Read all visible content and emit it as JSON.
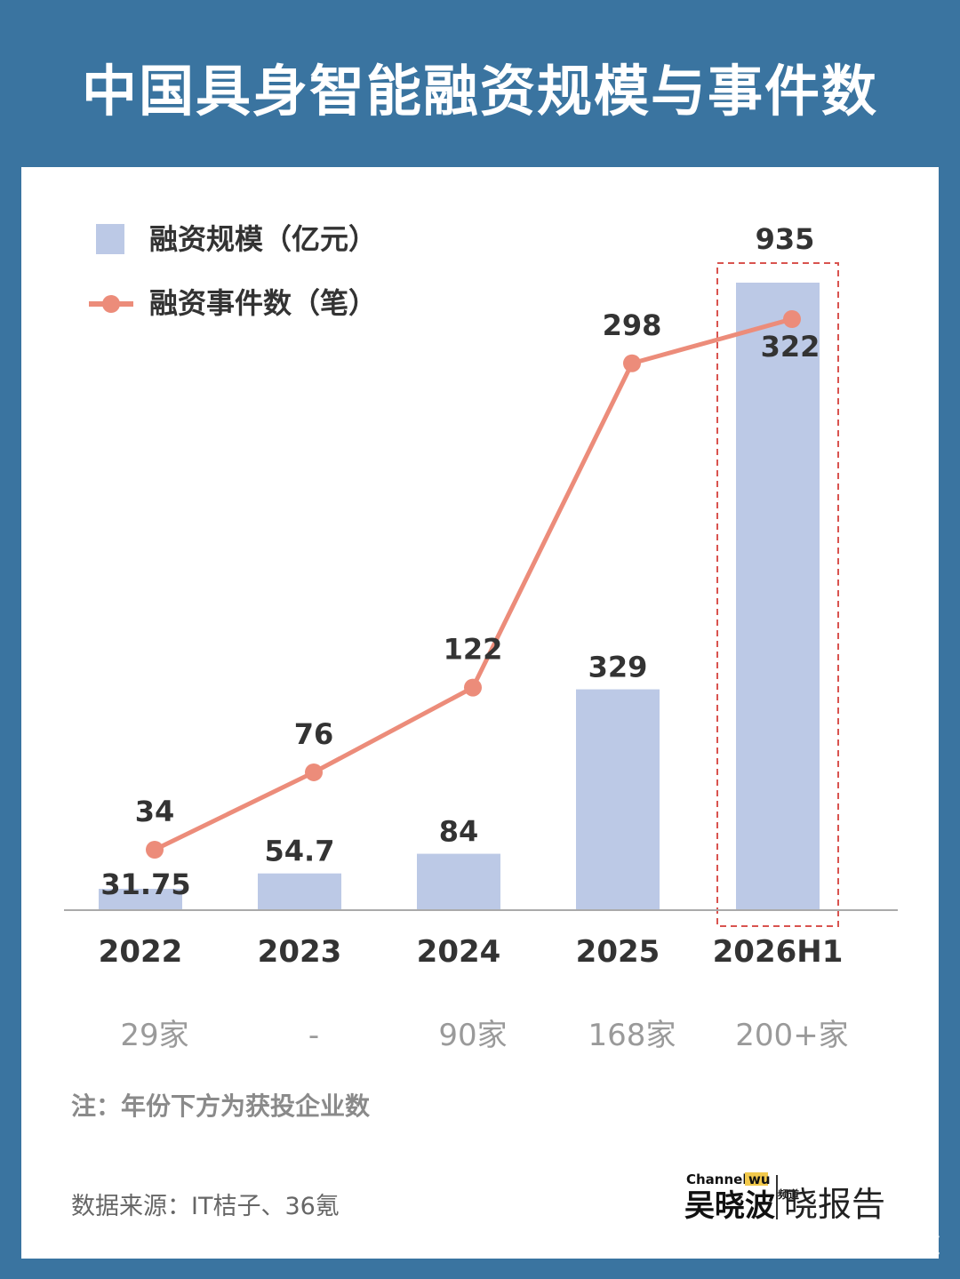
{
  "title": "中国具身智能融资规模与事件数",
  "chart_data": {
    "type": "bar+line",
    "categories": [
      "2022",
      "2023",
      "2024",
      "2025",
      "2026H1"
    ],
    "series": [
      {
        "name": "融资规模（亿元）",
        "type": "bar",
        "values": [
          31.75,
          54.7,
          84,
          329,
          935
        ],
        "labels": [
          "31.75",
          "54.7",
          "84",
          "329",
          "935"
        ],
        "color": "#bcc9e6"
      },
      {
        "name": "融资事件数（笔）",
        "type": "line",
        "values": [
          34,
          76,
          122,
          298,
          322
        ],
        "labels": [
          "34",
          "76",
          "122",
          "298",
          "322"
        ],
        "color": "#ec8c7a"
      }
    ],
    "company_counts": [
      "29家",
      "-",
      "90家",
      "168家",
      "200+家"
    ],
    "highlight_category": "2026H1",
    "legend_position": "top-left",
    "grid": false
  },
  "note": "注：年份下方为获投企业数",
  "source": "数据来源：IT桔子、36氪",
  "brand": {
    "channel": "Channel",
    "wu": "wu",
    "name": "吴晓波",
    "pindao": "频道",
    "report": "晓报告"
  },
  "watermark": "@吴晓波频道",
  "colors": {
    "background": "#3a74a0",
    "bar": "#bcc9e6",
    "line": "#ec8c7a",
    "highlight_box": "#d9534f"
  }
}
